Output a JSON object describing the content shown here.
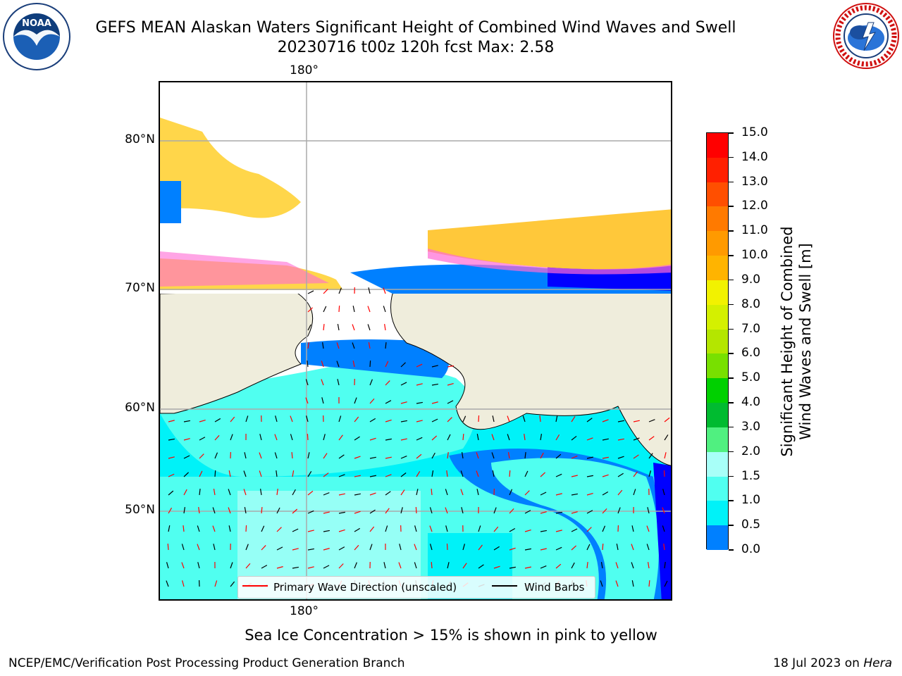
{
  "header": {
    "title_line1": "GEFS MEAN Alaskan Waters Significant Height of Combined Wind Waves and Swell",
    "title_line2": "20230716 t00z 120h fcst   Max: 2.58"
  },
  "logos": {
    "noaa_text": "NOAA",
    "noaa_ring_text": "NATIONAL OCEANIC AND ATMOSPHERIC ADMINISTRATION · U.S. DEPARTMENT OF COMMERCE",
    "nws_ring_text": "NATIONAL WEATHER SERVICE"
  },
  "map": {
    "lon_label_top": "180°",
    "lon_label_bottom": "180°",
    "lat_labels": [
      "80°N",
      "70°N",
      "60°N",
      "50°N"
    ]
  },
  "colorbar": {
    "title_line1": "Significant Height of Combined",
    "title_line2": "Wind Waves and Swell [m]",
    "ticks": [
      "15.0",
      "14.0",
      "13.0",
      "12.0",
      "11.0",
      "10.0",
      "9.0",
      "8.0",
      "7.0",
      "6.0",
      "5.0",
      "4.0",
      "3.0",
      "2.0",
      "1.5",
      "1.0",
      "0.5",
      "0.0"
    ],
    "colors_top_to_bottom": [
      "#ff0000",
      "#ff2000",
      "#ff4f00",
      "#ff7a00",
      "#ff9a00",
      "#ffb400",
      "#ffe800",
      "#f2f200",
      "#d4f000",
      "#b4e600",
      "#78e000",
      "#00d000",
      "#00bb30",
      "#50f080",
      "#a8fff8",
      "#50fff0",
      "#00f2f8",
      "#0080ff",
      "#0000ff"
    ]
  },
  "legend": {
    "wave_label": "Primary Wave Direction (unscaled)",
    "wave_color": "#ff0000",
    "wind_label": "Wind Barbs",
    "wind_color": "#000000"
  },
  "footer": {
    "note": "Sea Ice Concentration > 15% is shown in pink to yellow",
    "credit": "NCEP/EMC/Verification Post Processing Product Generation Branch",
    "date": "18 Jul 2023 on ",
    "host": "Hera"
  }
}
